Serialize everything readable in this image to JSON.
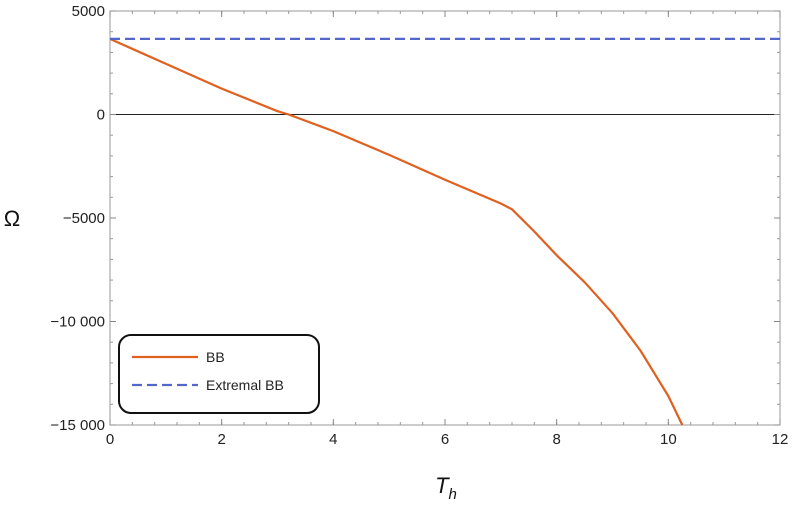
{
  "chart_data": {
    "type": "line",
    "title": "",
    "xlabel": "T",
    "xlabel_subscript": "h",
    "ylabel": "Ω",
    "xlim": [
      0,
      12
    ],
    "ylim": [
      -15000,
      5000
    ],
    "x_ticks": [
      0,
      2,
      4,
      6,
      8,
      10,
      12
    ],
    "x_tick_labels": [
      "0",
      "2",
      "4",
      "6",
      "8",
      "10",
      "12"
    ],
    "y_ticks": [
      5000,
      0,
      -5000,
      -10000,
      -15000
    ],
    "y_tick_labels": [
      "5000",
      "0",
      "−5000",
      "−10 000",
      "−15 000"
    ],
    "grid": false,
    "zero_line": true,
    "legend_position": "bottom-left",
    "series": [
      {
        "name": "BB",
        "color": "#E0601F",
        "style": "solid",
        "x": [
          0,
          1,
          2,
          3,
          3.2,
          4,
          5,
          6,
          7,
          7.2,
          7.6,
          8,
          8.5,
          9,
          9.5,
          10,
          10.25
        ],
        "y": [
          3650,
          2450,
          1250,
          160,
          0,
          -800,
          -1950,
          -3150,
          -4300,
          -4580,
          -5650,
          -6800,
          -8100,
          -9600,
          -11400,
          -13600,
          -15000
        ]
      },
      {
        "name": "Extremal BB",
        "color": "#5467C9",
        "style": "dashed",
        "x": [
          0,
          12
        ],
        "y": [
          3650,
          3650
        ]
      }
    ]
  }
}
